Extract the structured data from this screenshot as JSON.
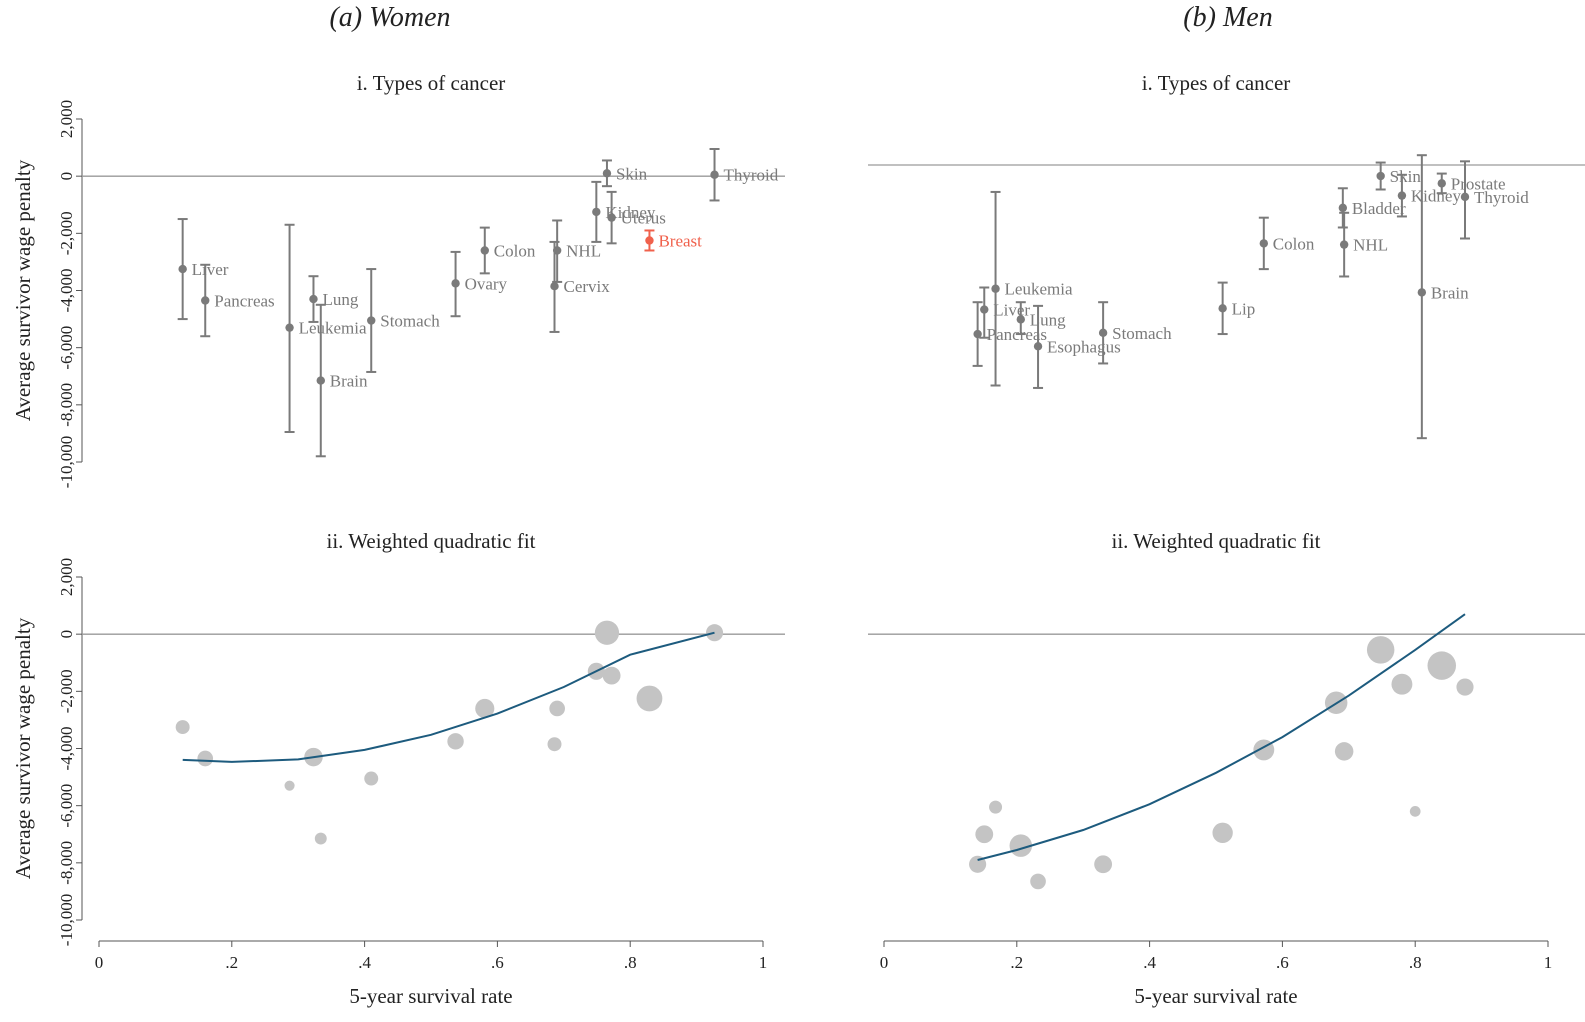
{
  "panels": {
    "women_title": "(a) Women",
    "men_title": "(b) Men"
  },
  "colors": {
    "point": "#7a7a7a",
    "highlight": "#f0614c",
    "bubble": "#c4c4c4",
    "fit": "#1d5b7e",
    "axis": "#555555",
    "zero_line": "#9a9a9a"
  },
  "chart_data": [
    {
      "id": "women_types",
      "type": "scatter",
      "title": "i. Types of cancer",
      "xlabel": "",
      "ylabel": "Average survivor wage penalty",
      "xlim": [
        0,
        1
      ],
      "ylim": [
        -10000,
        2000
      ],
      "yticks": [
        "2,000",
        "0",
        "-2,000",
        "-4,000",
        "-6,000",
        "-8,000",
        "-10,000"
      ],
      "ytick_values": [
        2000,
        0,
        -2000,
        -4000,
        -6000,
        -8000,
        -10000
      ],
      "reference_line": 0,
      "error_bars": true,
      "points": [
        {
          "label": "Liver",
          "x": 0.126,
          "y": -3250,
          "lo": -5000,
          "hi": -1500
        },
        {
          "label": "Pancreas",
          "x": 0.16,
          "y": -4350,
          "lo": -5600,
          "hi": -3100
        },
        {
          "label": "Leukemia",
          "x": 0.287,
          "y": -5300,
          "lo": -8950,
          "hi": -1700
        },
        {
          "label": "Lung",
          "x": 0.323,
          "y": -4300,
          "lo": -5100,
          "hi": -3500
        },
        {
          "label": "Brain",
          "x": 0.334,
          "y": -7150,
          "lo": -9800,
          "hi": -4500
        },
        {
          "label": "Stomach",
          "x": 0.41,
          "y": -5050,
          "lo": -6850,
          "hi": -3250
        },
        {
          "label": "Ovary",
          "x": 0.537,
          "y": -3750,
          "lo": -4900,
          "hi": -2650
        },
        {
          "label": "Colon",
          "x": 0.581,
          "y": -2600,
          "lo": -3400,
          "hi": -1800
        },
        {
          "label": "NHL",
          "x": 0.69,
          "y": -2600,
          "lo": -3700,
          "hi": -1550
        },
        {
          "label": "Cervix",
          "x": 0.686,
          "y": -3850,
          "lo": -5450,
          "hi": -2300
        },
        {
          "label": "Kidney",
          "x": 0.749,
          "y": -1250,
          "lo": -2300,
          "hi": -200
        },
        {
          "label": "Skin",
          "x": 0.765,
          "y": 100,
          "lo": -350,
          "hi": 550
        },
        {
          "label": "Uterus",
          "x": 0.772,
          "y": -1450,
          "lo": -2350,
          "hi": -550
        },
        {
          "label": "Breast",
          "x": 0.829,
          "y": -2250,
          "lo": -2600,
          "hi": -1900,
          "highlight": true
        },
        {
          "label": "Thyroid",
          "x": 0.927,
          "y": 50,
          "lo": -850,
          "hi": 950
        }
      ]
    },
    {
      "id": "men_types",
      "type": "scatter",
      "title": "i. Types of cancer",
      "xlabel": "",
      "ylabel": "",
      "xlim": [
        0,
        1
      ],
      "ylim": [
        -10500,
        1000
      ],
      "yticks": [],
      "ytick_values": [],
      "reference_line": 0,
      "error_bars": true,
      "points": [
        {
          "label": "Pancreas",
          "x": 0.141,
          "y": -6900,
          "lo": -8200,
          "hi": -5600
        },
        {
          "label": "Liver",
          "x": 0.151,
          "y": -5900,
          "lo": -7050,
          "hi": -5000
        },
        {
          "label": "Leukemia",
          "x": 0.168,
          "y": -5050,
          "lo": -9000,
          "hi": -1100
        },
        {
          "label": "Lung",
          "x": 0.206,
          "y": -6300,
          "lo": -6900,
          "hi": -5600
        },
        {
          "label": "Esophagus",
          "x": 0.232,
          "y": -7400,
          "lo": -9100,
          "hi": -5750
        },
        {
          "label": "Stomach",
          "x": 0.33,
          "y": -6850,
          "lo": -8100,
          "hi": -5600
        },
        {
          "label": "Lip",
          "x": 0.51,
          "y": -5850,
          "lo": -6900,
          "hi": -4800
        },
        {
          "label": "Colon",
          "x": 0.572,
          "y": -3200,
          "lo": -4250,
          "hi": -2150
        },
        {
          "label": "Bladder",
          "x": 0.691,
          "y": -1750,
          "lo": -2550,
          "hi": -950
        },
        {
          "label": "NHL",
          "x": 0.693,
          "y": -3250,
          "lo": -4550,
          "hi": -1950
        },
        {
          "label": "Skin",
          "x": 0.748,
          "y": -450,
          "lo": -1000,
          "hi": 100
        },
        {
          "label": "Kidney",
          "x": 0.78,
          "y": -1250,
          "lo": -2100,
          "hi": -400
        },
        {
          "label": "Brain",
          "x": 0.81,
          "y": -5200,
          "lo": -11150,
          "hi": 400
        },
        {
          "label": "Prostate",
          "x": 0.84,
          "y": -750,
          "lo": -1150,
          "hi": -350
        },
        {
          "label": "Thyroid",
          "x": 0.875,
          "y": -1300,
          "lo": -3000,
          "hi": 150
        }
      ]
    },
    {
      "id": "women_fit",
      "type": "scatter",
      "title": "ii. Weighted quadratic fit",
      "xlabel": "5-year survival rate",
      "ylabel": "Average survivor wage penalty",
      "xlim": [
        0,
        1
      ],
      "ylim": [
        -10000,
        2000
      ],
      "xticks": [
        "0",
        ".2",
        ".4",
        ".6",
        ".8",
        "1"
      ],
      "xtick_values": [
        0,
        0.2,
        0.4,
        0.6,
        0.8,
        1
      ],
      "yticks": [
        "2,000",
        "0",
        "-2,000",
        "-4,000",
        "-6,000",
        "-8,000",
        "-10,000"
      ],
      "ytick_values": [
        2000,
        0,
        -2000,
        -4000,
        -6000,
        -8000,
        -10000
      ],
      "reference_line": 0,
      "bubbles": [
        {
          "x": 0.126,
          "y": -3250,
          "w": 1.2
        },
        {
          "x": 0.16,
          "y": -4350,
          "w": 1.6
        },
        {
          "x": 0.287,
          "y": -5300,
          "w": 0.5
        },
        {
          "x": 0.323,
          "y": -4300,
          "w": 2.4
        },
        {
          "x": 0.334,
          "y": -7150,
          "w": 0.8
        },
        {
          "x": 0.41,
          "y": -5050,
          "w": 1.2
        },
        {
          "x": 0.537,
          "y": -3750,
          "w": 1.8
        },
        {
          "x": 0.581,
          "y": -2600,
          "w": 2.6
        },
        {
          "x": 0.69,
          "y": -2600,
          "w": 1.6
        },
        {
          "x": 0.686,
          "y": -3850,
          "w": 1.2
        },
        {
          "x": 0.749,
          "y": -1300,
          "w": 2.0
        },
        {
          "x": 0.765,
          "y": 50,
          "w": 4.5
        },
        {
          "x": 0.772,
          "y": -1450,
          "w": 2.2
        },
        {
          "x": 0.829,
          "y": -2250,
          "w": 5.2
        },
        {
          "x": 0.927,
          "y": 50,
          "w": 2.0
        }
      ],
      "fit_curve": {
        "x": [
          0.126,
          0.2,
          0.3,
          0.4,
          0.5,
          0.6,
          0.7,
          0.8,
          0.927
        ],
        "y": [
          -4400,
          -4470,
          -4380,
          -4050,
          -3520,
          -2780,
          -1850,
          -720,
          50
        ]
      }
    },
    {
      "id": "men_fit",
      "type": "scatter",
      "title": "ii. Weighted quadratic fit",
      "xlabel": "5-year survival rate",
      "ylabel": "",
      "xlim": [
        0,
        1
      ],
      "ylim": [
        -10000,
        2000
      ],
      "xticks": [
        "0",
        ".2",
        ".4",
        ".6",
        ".8",
        "1"
      ],
      "xtick_values": [
        0,
        0.2,
        0.4,
        0.6,
        0.8,
        1
      ],
      "yticks": [],
      "ytick_values": [],
      "reference_line": 0,
      "bubbles": [
        {
          "x": 0.141,
          "y": -8050,
          "w": 2.0
        },
        {
          "x": 0.151,
          "y": -7000,
          "w": 2.2
        },
        {
          "x": 0.168,
          "y": -6050,
          "w": 1.0
        },
        {
          "x": 0.206,
          "y": -7400,
          "w": 3.8
        },
        {
          "x": 0.232,
          "y": -8650,
          "w": 1.6
        },
        {
          "x": 0.33,
          "y": -8050,
          "w": 2.2
        },
        {
          "x": 0.51,
          "y": -6950,
          "w": 3.0
        },
        {
          "x": 0.572,
          "y": -4050,
          "w": 3.2
        },
        {
          "x": 0.681,
          "y": -2400,
          "w": 3.8
        },
        {
          "x": 0.693,
          "y": -4100,
          "w": 2.4
        },
        {
          "x": 0.748,
          "y": -550,
          "w": 6.0
        },
        {
          "x": 0.78,
          "y": -1750,
          "w": 3.2
        },
        {
          "x": 0.8,
          "y": -6200,
          "w": 0.6
        },
        {
          "x": 0.84,
          "y": -1100,
          "w": 6.5
        },
        {
          "x": 0.875,
          "y": -1850,
          "w": 2.0
        }
      ],
      "fit_curve": {
        "x": [
          0.141,
          0.2,
          0.3,
          0.4,
          0.5,
          0.6,
          0.7,
          0.8,
          0.875
        ],
        "y": [
          -7900,
          -7550,
          -6850,
          -5950,
          -4850,
          -3600,
          -2150,
          -550,
          700
        ]
      }
    }
  ]
}
